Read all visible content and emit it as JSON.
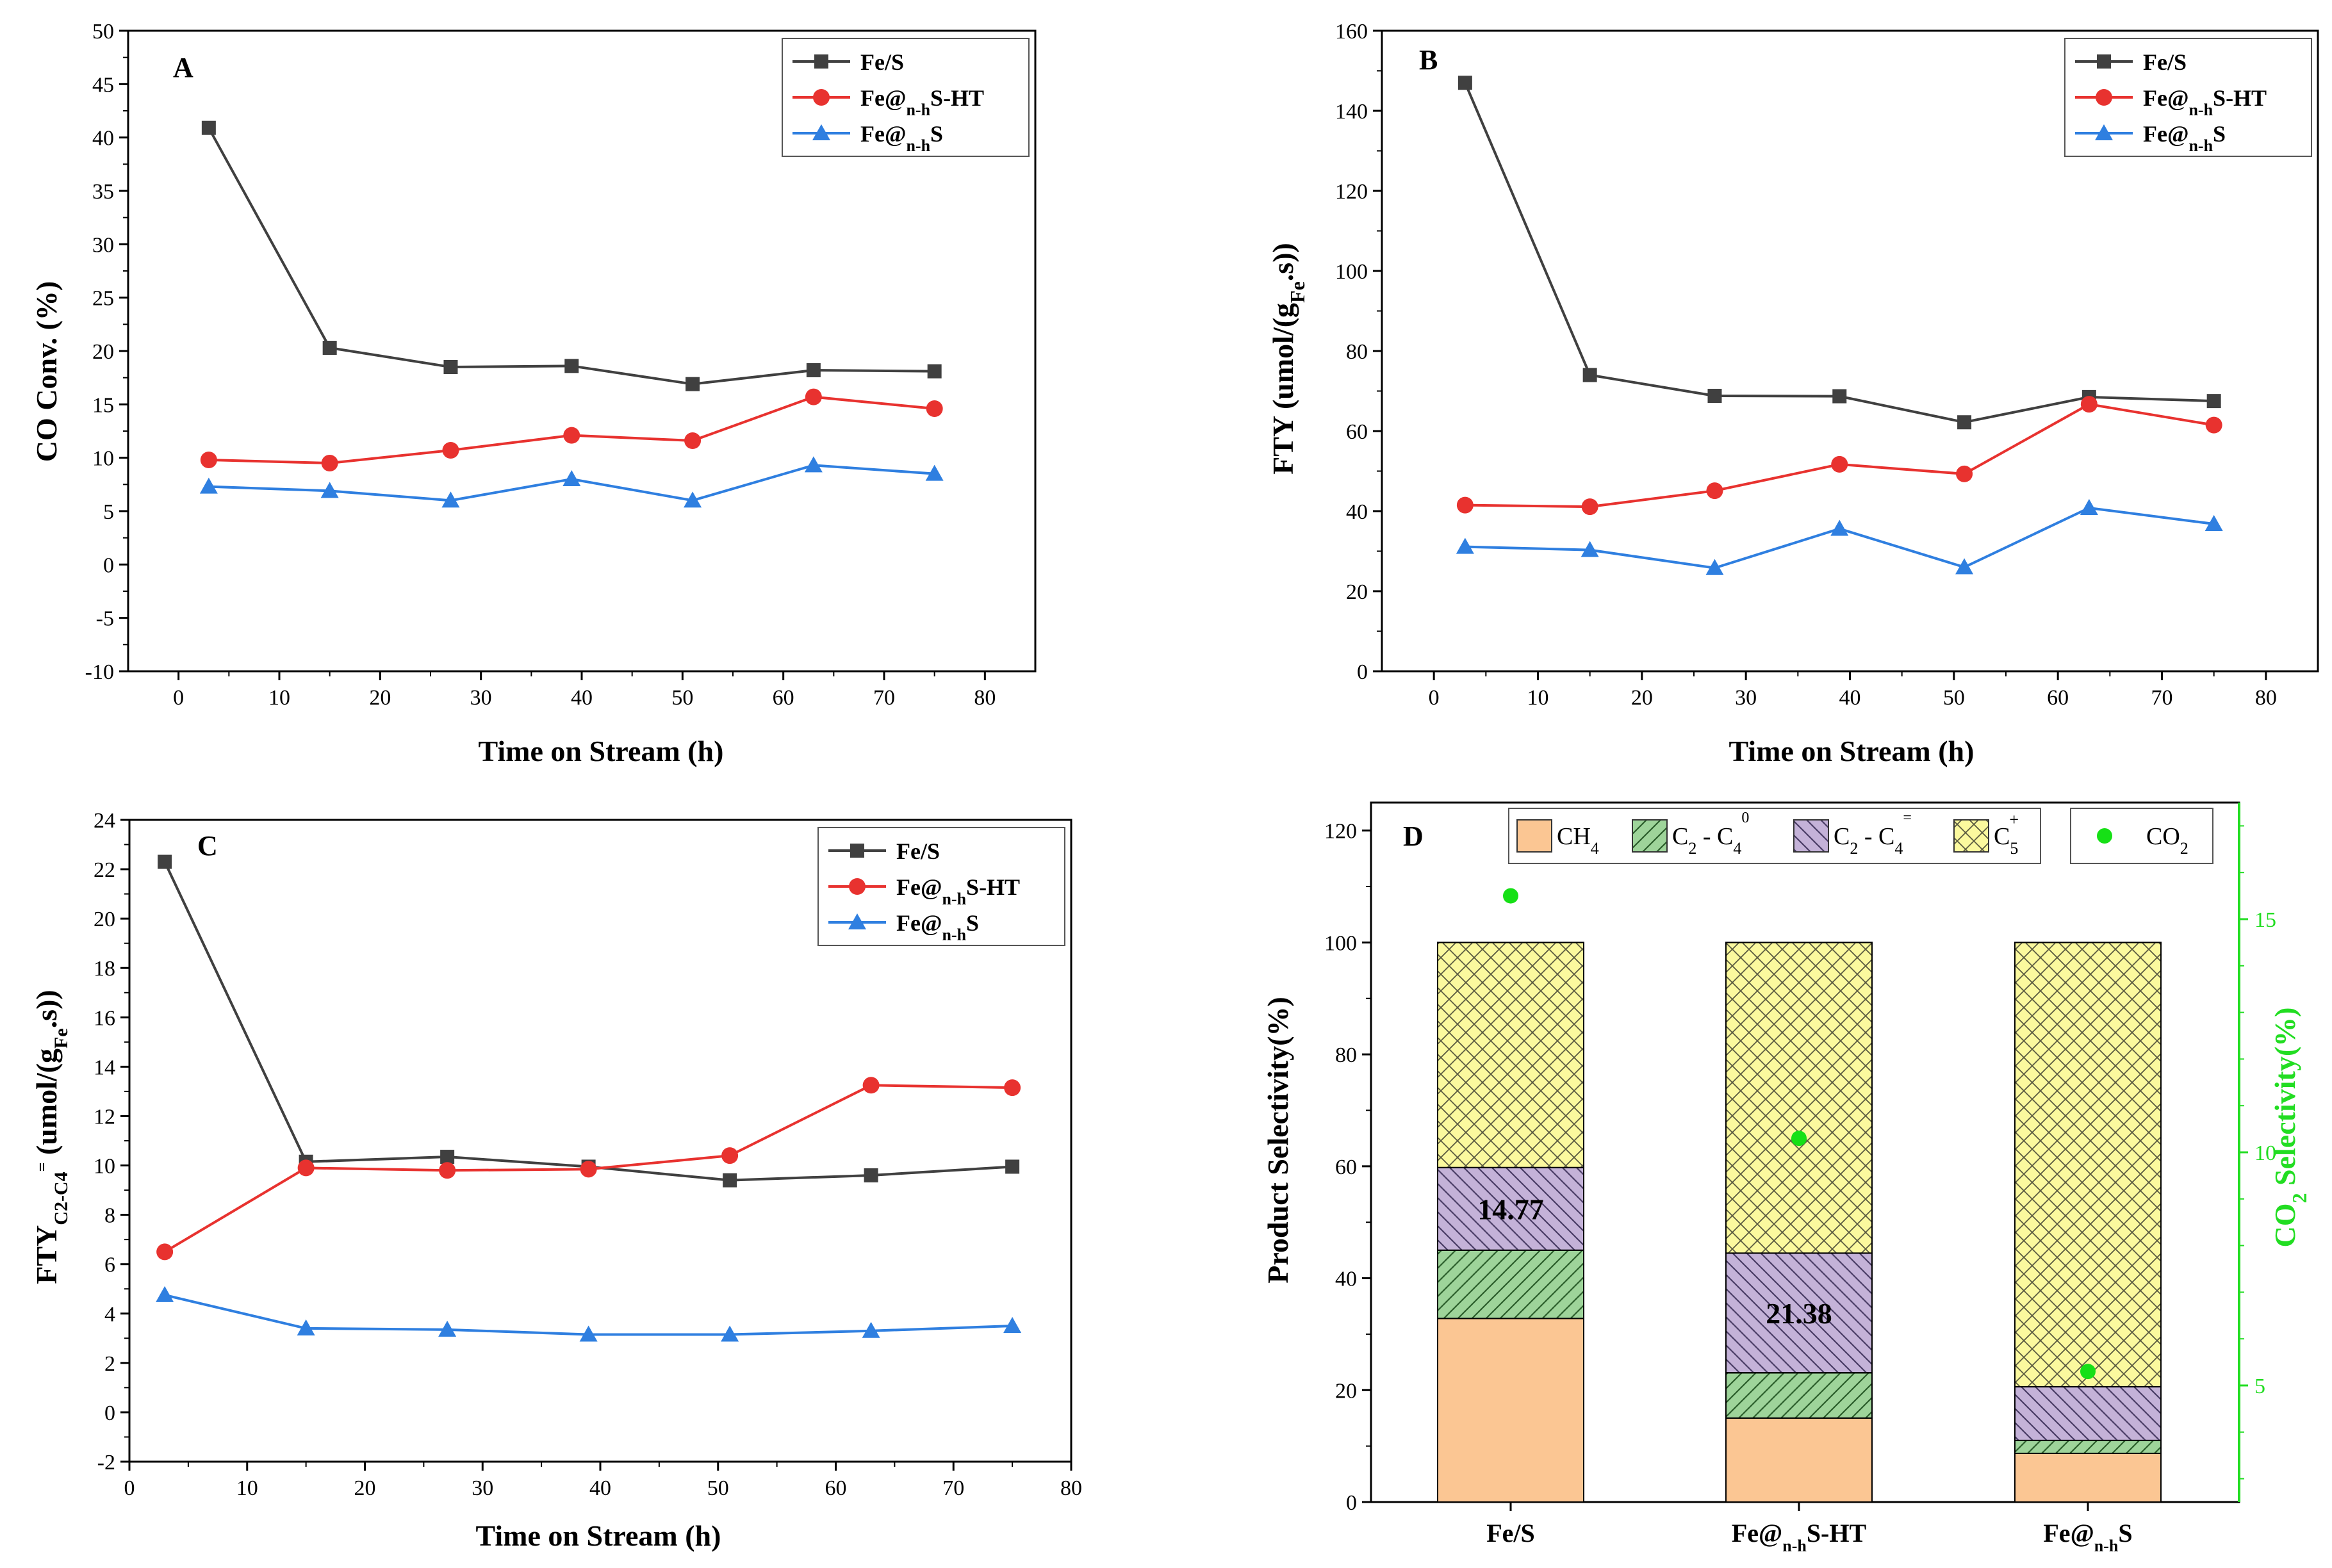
{
  "figure": {
    "panels": {
      "A": {
        "letter": "A",
        "xlabel": "Time on Stream (h)",
        "ylabel": "CO Conv. (%)",
        "xticks": [
          "0",
          "10",
          "20",
          "30",
          "40",
          "50",
          "60",
          "70",
          "80"
        ],
        "yticks": [
          "-10",
          "-5",
          "0",
          "5",
          "10",
          "15",
          "20",
          "25",
          "30",
          "35",
          "40",
          "45",
          "50"
        ],
        "legend": [
          {
            "main": "Fe/S",
            "sub": "",
            "tail": ""
          },
          {
            "main": "Fe@",
            "sub": "n-h",
            "tail": "S-HT"
          },
          {
            "main": "Fe@",
            "sub": "n-h",
            "tail": "S"
          }
        ]
      },
      "B": {
        "letter": "B",
        "xlabel": "Time on Stream (h)",
        "ylabel_main": "FTY (umol/(g",
        "ylabel_sub": "Fe",
        "ylabel_tail": ".s))",
        "xticks": [
          "0",
          "10",
          "20",
          "30",
          "40",
          "50",
          "60",
          "70",
          "80"
        ],
        "yticks": [
          "0",
          "20",
          "40",
          "60",
          "80",
          "100",
          "120",
          "140",
          "160"
        ],
        "legend": [
          {
            "main": "Fe/S",
            "sub": "",
            "tail": ""
          },
          {
            "main": "Fe@",
            "sub": "n-h",
            "tail": "S-HT"
          },
          {
            "main": "Fe@",
            "sub": "n-h",
            "tail": "S"
          }
        ]
      },
      "C": {
        "letter": "C",
        "xlabel": "Time on Stream (h)",
        "ylabel_main": "FTY",
        "ylabel_sub1": "C2-C4",
        "ylabel_sup1": "=",
        "ylabel_mid": " (umol/(g",
        "ylabel_sub2": "Fe",
        "ylabel_tail": ".s))",
        "xticks": [
          "0",
          "10",
          "20",
          "30",
          "40",
          "50",
          "60",
          "70",
          "80"
        ],
        "yticks": [
          "-2",
          "0",
          "2",
          "4",
          "6",
          "8",
          "10",
          "12",
          "14",
          "16",
          "18",
          "20",
          "22",
          "24"
        ],
        "legend": [
          {
            "main": "Fe/S",
            "sub": "",
            "tail": ""
          },
          {
            "main": "Fe@",
            "sub": "n-h",
            "tail": "S-HT"
          },
          {
            "main": "Fe@",
            "sub": "n-h",
            "tail": "S"
          }
        ]
      },
      "D": {
        "letter": "D",
        "ylabel": "Product  Selectivity(%)",
        "y2label_main": "CO",
        "y2label_sub": "2",
        "y2label_tail": " Selectivity(%)",
        "yticks": [
          "0",
          "20",
          "40",
          "60",
          "80",
          "100",
          "120"
        ],
        "y2ticks": [
          "5",
          "10",
          "15"
        ],
        "categories": [
          {
            "main": "Fe/S",
            "sub": "",
            "tail": ""
          },
          {
            "main": "Fe@",
            "sub": "n-h",
            "tail": "S-HT"
          },
          {
            "main": "Fe@",
            "sub": "n-h",
            "tail": "S"
          }
        ],
        "legend": [
          {
            "main": "CH",
            "sub": "4",
            "sup": "",
            "tail": ""
          },
          {
            "main": "C",
            "sub": "2",
            "sup": "",
            "tail": " - C",
            "sub2": "4",
            "sup2": "0"
          },
          {
            "main": "C",
            "sub": "2",
            "sup": "",
            "tail": " - C",
            "sub2": "4",
            "sup2": "="
          },
          {
            "main": "C",
            "sub": "5",
            "sup": "+",
            "tail": ""
          }
        ],
        "co2_legend_main": "CO",
        "co2_legend_sub": "2"
      }
    },
    "colors": {
      "black_series": "#404040",
      "red_series": "#e8322f",
      "blue_series": "#2f7fe0",
      "ch4": "#fbc693",
      "c2c4_sat": "#9ed49a",
      "c2c4_ole": "#c4b2d8",
      "c5": "#fbf99e",
      "co2": "#16e016",
      "green_axis": "#22dd22"
    }
  },
  "chart_data": [
    {
      "id": "A",
      "type": "line",
      "title": "",
      "xlabel": "Time on Stream (h)",
      "ylabel": "CO Conv. (%)",
      "xlim": [
        -5,
        85
      ],
      "ylim": [
        -10,
        50
      ],
      "x": [
        3,
        15,
        27,
        39,
        51,
        63,
        75
      ],
      "series": [
        {
          "name": "Fe/S",
          "marker": "square",
          "values": [
            40.9,
            20.3,
            18.5,
            18.6,
            16.9,
            18.2,
            18.1
          ]
        },
        {
          "name": "Fe@n-hS-HT",
          "marker": "circle",
          "values": [
            9.8,
            9.5,
            10.7,
            12.1,
            11.6,
            15.7,
            14.6
          ]
        },
        {
          "name": "Fe@n-hS",
          "marker": "triangle",
          "values": [
            7.3,
            6.9,
            6.0,
            8.0,
            6.0,
            9.3,
            8.5
          ]
        }
      ],
      "legend_position": "top-right"
    },
    {
      "id": "B",
      "type": "line",
      "title": "",
      "xlabel": "Time on Stream (h)",
      "ylabel": "FTY (umol/(gFe.s))",
      "xlim": [
        -5,
        85
      ],
      "ylim": [
        0,
        160
      ],
      "x": [
        3,
        15,
        27,
        39,
        51,
        63,
        75
      ],
      "series": [
        {
          "name": "Fe/S",
          "marker": "square",
          "values": [
            147,
            74,
            68.8,
            68.7,
            62.2,
            68.5,
            67.5
          ]
        },
        {
          "name": "Fe@n-hS-HT",
          "marker": "circle",
          "values": [
            41.5,
            41.1,
            45.1,
            51.7,
            49.3,
            66.7,
            61.5
          ]
        },
        {
          "name": "Fe@n-hS",
          "marker": "triangle",
          "values": [
            31.1,
            30.3,
            25.8,
            35.6,
            26.0,
            40.8,
            36.8
          ]
        }
      ],
      "legend_position": "top-right"
    },
    {
      "id": "C",
      "type": "line",
      "title": "",
      "xlabel": "Time on Stream (h)",
      "ylabel": "FTYC2-C4= (umol/(gFe.s))",
      "xlim": [
        0,
        80
      ],
      "ylim": [
        -2,
        24
      ],
      "x": [
        3,
        15,
        27,
        39,
        51,
        63,
        75
      ],
      "series": [
        {
          "name": "Fe/S",
          "marker": "square",
          "values": [
            22.3,
            10.15,
            10.35,
            9.95,
            9.4,
            9.6,
            9.95
          ]
        },
        {
          "name": "Fe@n-hS-HT",
          "marker": "circle",
          "values": [
            6.5,
            9.9,
            9.8,
            9.85,
            10.4,
            13.25,
            13.15
          ]
        },
        {
          "name": "Fe@n-hS",
          "marker": "triangle",
          "values": [
            4.75,
            3.4,
            3.35,
            3.15,
            3.15,
            3.3,
            3.5
          ]
        }
      ],
      "legend_position": "top-right"
    },
    {
      "id": "D",
      "type": "bar",
      "stacked": true,
      "title": "",
      "xlabel": "",
      "ylabel": "Product  Selectivity(%)",
      "y2label": "CO2 Selectivity(%)",
      "ylim": [
        0,
        125
      ],
      "y2lim": [
        2.5,
        17.5
      ],
      "categories": [
        "Fe/S",
        "Fe@n-hS-HT",
        "Fe@n-hS"
      ],
      "series": [
        {
          "name": "CH4",
          "values": [
            32.8,
            15.0,
            8.7
          ]
        },
        {
          "name": "C2 - C4 0",
          "values": [
            12.2,
            8.1,
            2.3
          ]
        },
        {
          "name": "C2 - C4 =",
          "values": [
            14.77,
            21.38,
            9.6
          ]
        },
        {
          "name": "C5+",
          "values": [
            40.23,
            55.52,
            79.4
          ]
        }
      ],
      "secondary_series": {
        "name": "CO2",
        "axis": "right",
        "marker": "circle",
        "values": [
          15.5,
          10.3,
          5.3
        ]
      },
      "annotations": [
        "14.77",
        "21.38"
      ],
      "legend_position": "top"
    }
  ]
}
